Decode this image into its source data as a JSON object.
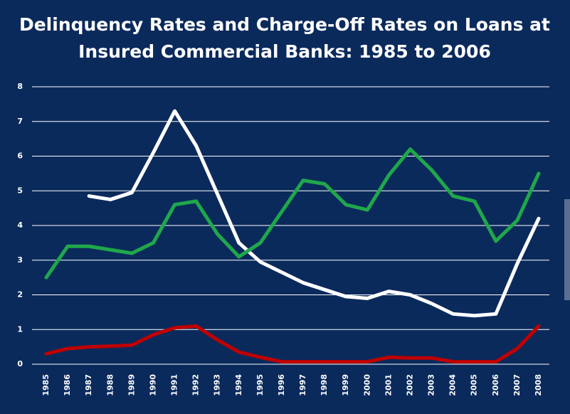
{
  "chart_data": {
    "type": "line",
    "title": "Delinquency Rates and Charge-Off Rates on Loans at Insured Commercial Banks: 1985 to 2006",
    "categories": [
      "1985",
      "1986",
      "1987",
      "1988",
      "1989",
      "1990",
      "1991",
      "1992",
      "1993",
      "1994",
      "1995",
      "1996",
      "1997",
      "1998",
      "1999",
      "2000",
      "2001",
      "2002",
      "2003",
      "2004",
      "2005",
      "2006",
      "2007",
      "2008"
    ],
    "series": [
      {
        "color": "#ffffff",
        "values": [
          null,
          null,
          4.85,
          4.75,
          4.95,
          6.1,
          7.3,
          6.3,
          4.9,
          3.5,
          2.95,
          2.65,
          2.35,
          2.15,
          1.95,
          1.9,
          2.1,
          2.0,
          1.75,
          1.45,
          1.4,
          1.45,
          2.9,
          4.2
        ]
      },
      {
        "color": "#1fa84a",
        "values": [
          2.5,
          3.4,
          3.4,
          3.3,
          3.2,
          3.5,
          4.6,
          4.7,
          3.75,
          3.1,
          3.5,
          4.4,
          5.3,
          5.2,
          4.6,
          4.45,
          5.45,
          6.2,
          5.6,
          4.85,
          4.7,
          3.55,
          4.15,
          5.5
        ]
      },
      {
        "color": "#c00000",
        "values": [
          0.3,
          0.45,
          0.5,
          0.52,
          0.55,
          0.85,
          1.05,
          1.1,
          0.7,
          0.35,
          0.2,
          0.07,
          0.07,
          0.07,
          0.07,
          0.07,
          0.2,
          0.18,
          0.18,
          0.07,
          0.07,
          0.07,
          0.45,
          1.1
        ]
      }
    ],
    "ylim": [
      0,
      8
    ],
    "yticks": [
      0,
      1,
      2,
      3,
      4,
      5,
      6,
      7,
      8
    ],
    "grid": true
  }
}
